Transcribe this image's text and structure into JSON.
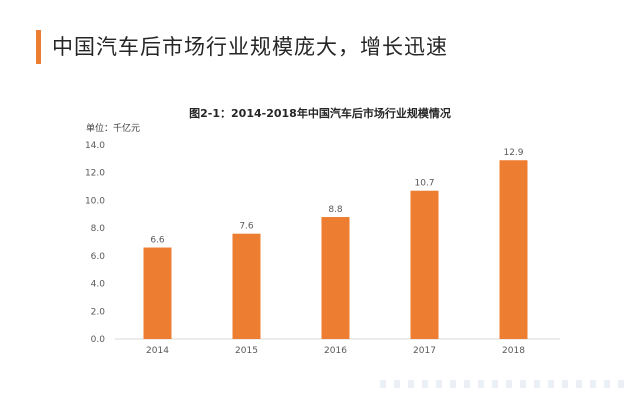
{
  "header": {
    "title": "中国汽车后市场行业规模庞大，增长迅速"
  },
  "colors": {
    "accent": "#ed7d31",
    "bar": "#ed7d31",
    "text": "#262626",
    "axis": "#d9d9d9"
  },
  "chart_data": {
    "type": "bar",
    "title": "图2-1：2014-2018年中国汽车后市场行业规模情况",
    "unit_label": "单位：千亿元",
    "categories": [
      "2014",
      "2015",
      "2016",
      "2017",
      "2018"
    ],
    "values": [
      6.6,
      7.6,
      8.8,
      10.7,
      12.9
    ],
    "data_labels": [
      "6.6",
      "7.6",
      "8.8",
      "10.7",
      "12.9"
    ],
    "y_ticks": [
      "0.0",
      "2.0",
      "4.0",
      "6.0",
      "8.0",
      "10.0",
      "12.0",
      "14.0"
    ],
    "ylim": [
      0,
      14
    ],
    "xlabel": "",
    "ylabel": "",
    "grid": false,
    "legend": "none"
  }
}
